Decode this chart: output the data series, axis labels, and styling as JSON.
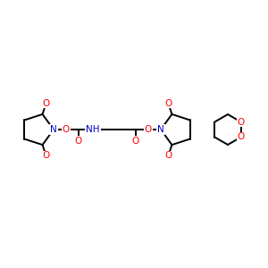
{
  "bg_color": "#ffffff",
  "atom_color_N": "#0000cc",
  "atom_color_O": "#ff0000",
  "line_color": "#000000",
  "line_width": 1.4,
  "font_size_atom": 7.5,
  "figsize": [
    3.0,
    3.0
  ],
  "dpi": 100,
  "xlim": [
    0,
    300
  ],
  "ylim": [
    0,
    300
  ]
}
